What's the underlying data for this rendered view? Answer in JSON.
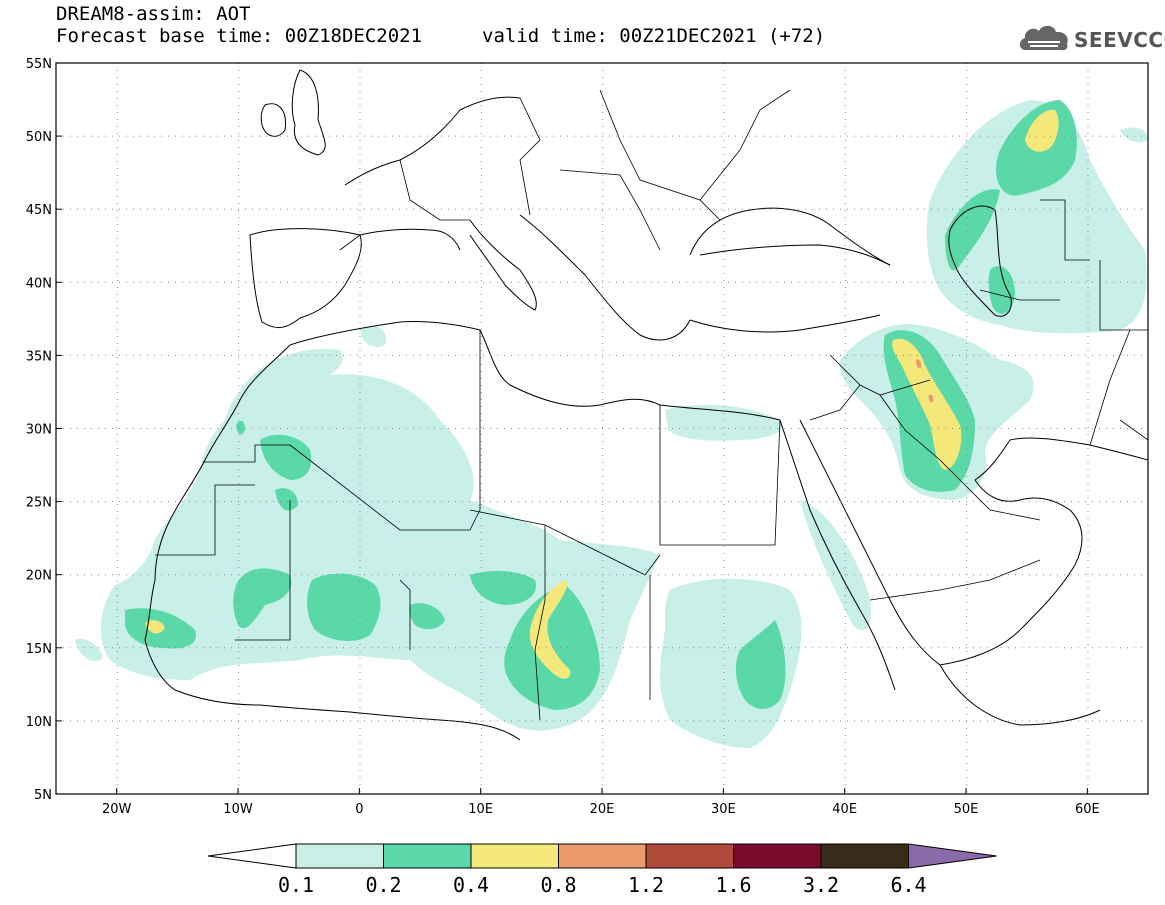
{
  "header": {
    "title": "DREAM8-assim: AOT",
    "forecast_base": "Forecast base time: 00Z18DEC2021",
    "valid_time": "valid time: 00Z21DEC2021 (+72)"
  },
  "logo": {
    "text": "SEEVCCC",
    "icon": "cloud-icon"
  },
  "map": {
    "lon_range": [
      -25,
      65
    ],
    "lat_range": [
      5,
      55
    ],
    "lon_ticks": [
      "20W",
      "10W",
      "0",
      "10E",
      "20E",
      "30E",
      "40E",
      "50E",
      "60E"
    ],
    "lat_ticks": [
      "5N",
      "10N",
      "15N",
      "20N",
      "25N",
      "30N",
      "35N",
      "40N",
      "45N",
      "50N",
      "55N"
    ],
    "grid": "dotted"
  },
  "legend": {
    "labels": [
      "0.1",
      "0.2",
      "0.4",
      "0.8",
      "1.2",
      "1.6",
      "3.2",
      "6.4"
    ],
    "colors": [
      "#ffffff",
      "#c8f0e8",
      "#5ad8a8",
      "#f5e87a",
      "#eb9a6e",
      "#b04a3a",
      "#7a0a2a",
      "#3a2a1a",
      "#8a6aa8"
    ]
  },
  "colors": {
    "level_01": "#c8f0e8",
    "level_02": "#5ad8a8",
    "level_04": "#f5e87a",
    "level_08": "#eb9a6e"
  }
}
